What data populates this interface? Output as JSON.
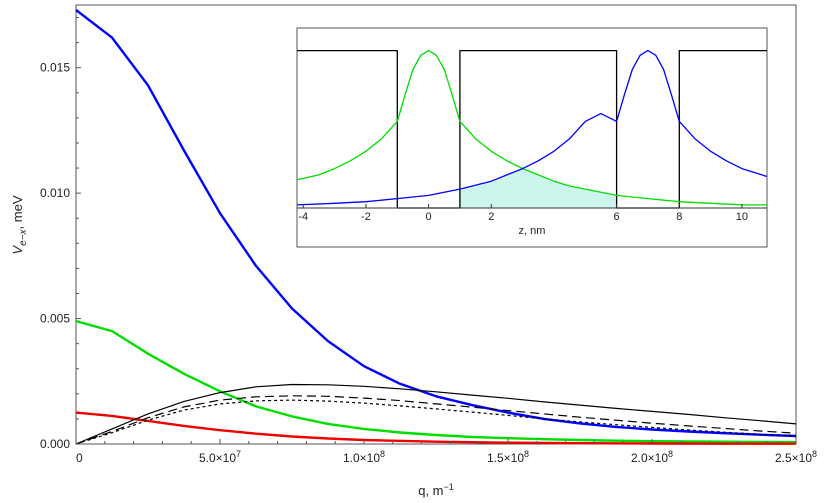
{
  "chart_data": [
    {
      "type": "line",
      "title": "",
      "xlabel": "q, m⁻¹",
      "ylabel": "V_e−x , meV",
      "ylabel_parts": {
        "main": "V",
        "sub": "e−x",
        "tail": ", meV"
      },
      "xlabel_parts": {
        "main": "q, m",
        "sup": "−1"
      },
      "xlim": [
        0,
        250000000
      ],
      "ylim": [
        0,
        0.0175
      ],
      "xticks": [
        {
          "value": 0,
          "label": "0"
        },
        {
          "value": 50000000,
          "label": "5.0×10",
          "sup": "7"
        },
        {
          "value": 100000000,
          "label": "1.0×10",
          "sup": "8"
        },
        {
          "value": 150000000,
          "label": "1.5×10",
          "sup": "8"
        },
        {
          "value": 200000000,
          "label": "2.0×10",
          "sup": "8"
        },
        {
          "value": 250000000,
          "label": "2.5×10",
          "sup": "8"
        }
      ],
      "yticks": [
        {
          "value": 0,
          "label": "0.000"
        },
        {
          "value": 0.005,
          "label": "0.005"
        },
        {
          "value": 0.01,
          "label": "0.010"
        },
        {
          "value": 0.015,
          "label": "0.015"
        }
      ],
      "series": [
        {
          "color": "#0000ff",
          "style": "solid",
          "width": 2.4,
          "x": [
            0,
            12500000,
            25000000,
            37500000,
            50000000,
            62500000,
            75000000,
            87500000,
            100000000,
            112500000,
            125000000,
            137500000,
            150000000,
            162500000,
            175000000,
            187500000,
            200000000,
            212500000,
            225000000,
            237500000,
            250000000
          ],
          "y": [
            0.0173,
            0.0162,
            0.0143,
            0.0117,
            0.0092,
            0.0071,
            0.0054,
            0.0041,
            0.0031,
            0.0024,
            0.0019,
            0.00155,
            0.00125,
            0.001,
            0.00082,
            0.00068,
            0.00058,
            0.0005,
            0.00043,
            0.00037,
            0.00032
          ]
        },
        {
          "color": "#00dd00",
          "style": "solid",
          "width": 2.4,
          "x": [
            0,
            12500000,
            25000000,
            37500000,
            50000000,
            62500000,
            75000000,
            87500000,
            100000000,
            112500000,
            125000000,
            137500000,
            150000000,
            162500000,
            175000000,
            187500000,
            200000000,
            212500000,
            225000000,
            237500000,
            250000000
          ],
          "y": [
            0.0049,
            0.0045,
            0.0036,
            0.0028,
            0.0021,
            0.0015,
            0.0011,
            0.0008,
            0.0006,
            0.00046,
            0.00036,
            0.00028,
            0.00023,
            0.00019,
            0.00016,
            0.00013,
            0.00011,
            0.0001,
            9e-05,
            8e-05,
            7e-05
          ]
        },
        {
          "color": "#ee0000",
          "style": "solid",
          "width": 2.4,
          "x": [
            0,
            12500000,
            25000000,
            37500000,
            50000000,
            62500000,
            75000000,
            87500000,
            100000000,
            125000000,
            150000000,
            175000000,
            200000000,
            225000000,
            250000000
          ],
          "y": [
            0.00125,
            0.00112,
            0.00092,
            0.00072,
            0.00055,
            0.00041,
            0.0003,
            0.00022,
            0.00016,
            9e-05,
            5e-05,
            3e-05,
            2e-05,
            1e-05,
            1e-05
          ]
        },
        {
          "color": "#000000",
          "style": "solid",
          "width": 1.2,
          "x": [
            0,
            12500000,
            25000000,
            37500000,
            50000000,
            62500000,
            75000000,
            87500000,
            100000000,
            112500000,
            125000000,
            137500000,
            150000000,
            162500000,
            175000000,
            187500000,
            200000000,
            212500000,
            225000000,
            237500000,
            250000000
          ],
          "y": [
            0,
            0.0006,
            0.0012,
            0.0017,
            0.00205,
            0.00228,
            0.00237,
            0.00236,
            0.0023,
            0.0022,
            0.00208,
            0.00195,
            0.00182,
            0.00168,
            0.00155,
            0.00142,
            0.0013,
            0.00118,
            0.00105,
            0.00093,
            0.0008
          ]
        },
        {
          "color": "#000000",
          "style": "dashed",
          "width": 1.2,
          "x": [
            0,
            12500000,
            25000000,
            37500000,
            50000000,
            62500000,
            75000000,
            87500000,
            100000000,
            112500000,
            125000000,
            137500000,
            150000000,
            162500000,
            175000000,
            187500000,
            200000000,
            212500000,
            225000000,
            237500000,
            250000000
          ],
          "y": [
            0,
            0.0005,
            0.00105,
            0.00148,
            0.00175,
            0.00188,
            0.00192,
            0.0019,
            0.00183,
            0.00173,
            0.0016,
            0.00147,
            0.00133,
            0.0012,
            0.00107,
            0.00095,
            0.00083,
            0.00072,
            0.00062,
            0.00052,
            0.00043
          ]
        },
        {
          "color": "#000000",
          "style": "dotted",
          "width": 1.2,
          "x": [
            0,
            12500000,
            25000000,
            37500000,
            50000000,
            62500000,
            75000000,
            87500000,
            100000000,
            112500000,
            125000000,
            137500000,
            150000000,
            162500000,
            175000000,
            187500000,
            200000000,
            212500000,
            225000000,
            237500000,
            250000000
          ],
          "y": [
            0,
            0.00045,
            0.00095,
            0.00135,
            0.0016,
            0.00172,
            0.00175,
            0.00171,
            0.00163,
            0.00152,
            0.0014,
            0.00127,
            0.00114,
            0.001,
            0.00088,
            0.00077,
            0.00066,
            0.00056,
            0.00047,
            0.00039,
            0.00032
          ]
        }
      ]
    },
    {
      "type": "line",
      "title": "",
      "xlabel": "z, nm",
      "ylabel": "",
      "xlim": [
        -4.2,
        10.8
      ],
      "ylim": [
        0,
        1.08
      ],
      "xticks": [
        {
          "value": -4,
          "label": "-4"
        },
        {
          "value": -2,
          "label": "-2"
        },
        {
          "value": 0,
          "label": "0"
        },
        {
          "value": 2,
          "label": "2"
        },
        {
          "value": 6,
          "label": "6"
        },
        {
          "value": 8,
          "label": "8"
        },
        {
          "value": 10,
          "label": "10"
        }
      ],
      "grid": false,
      "overlap_fill": "#ccf5ee",
      "series": [
        {
          "color": "#000000",
          "style": "solid",
          "width": 1.3,
          "x": [
            -4.2,
            -1,
            -1,
            1,
            1,
            6,
            6,
            8,
            8,
            10.8
          ],
          "y": [
            1.0,
            1.0,
            0,
            0,
            1.0,
            1.0,
            0,
            0,
            1.0,
            1.0
          ]
        },
        {
          "color": "#00dd00",
          "style": "solid",
          "width": 1.3,
          "x": [
            -4.2,
            -3.5,
            -3,
            -2.5,
            -2,
            -1.5,
            -1,
            -0.75,
            -0.5,
            -0.25,
            0,
            0.25,
            0.5,
            0.75,
            1,
            1.5,
            2,
            2.5,
            3,
            3.5,
            4,
            4.5,
            5,
            5.5,
            6,
            7,
            8,
            9,
            10,
            10.8
          ],
          "y": [
            0.18,
            0.21,
            0.25,
            0.3,
            0.36,
            0.44,
            0.55,
            0.72,
            0.88,
            0.97,
            1.0,
            0.97,
            0.88,
            0.72,
            0.55,
            0.44,
            0.36,
            0.3,
            0.25,
            0.21,
            0.17,
            0.14,
            0.12,
            0.1,
            0.08,
            0.06,
            0.04,
            0.03,
            0.02,
            0.02
          ]
        },
        {
          "color": "#0000ff",
          "style": "solid",
          "width": 1.3,
          "x": [
            -4.2,
            -3,
            -2,
            -1,
            0,
            1,
            2,
            2.5,
            3,
            3.5,
            4,
            4.5,
            5,
            5.5,
            6,
            6.25,
            6.5,
            6.75,
            7,
            7.25,
            7.5,
            7.75,
            8,
            8.5,
            9,
            9.5,
            10,
            10.8
          ],
          "y": [
            0.02,
            0.03,
            0.04,
            0.06,
            0.08,
            0.12,
            0.17,
            0.21,
            0.25,
            0.3,
            0.36,
            0.44,
            0.55,
            0.6,
            0.55,
            0.72,
            0.88,
            0.97,
            1.0,
            0.97,
            0.88,
            0.72,
            0.55,
            0.44,
            0.36,
            0.3,
            0.25,
            0.2
          ]
        }
      ]
    }
  ]
}
